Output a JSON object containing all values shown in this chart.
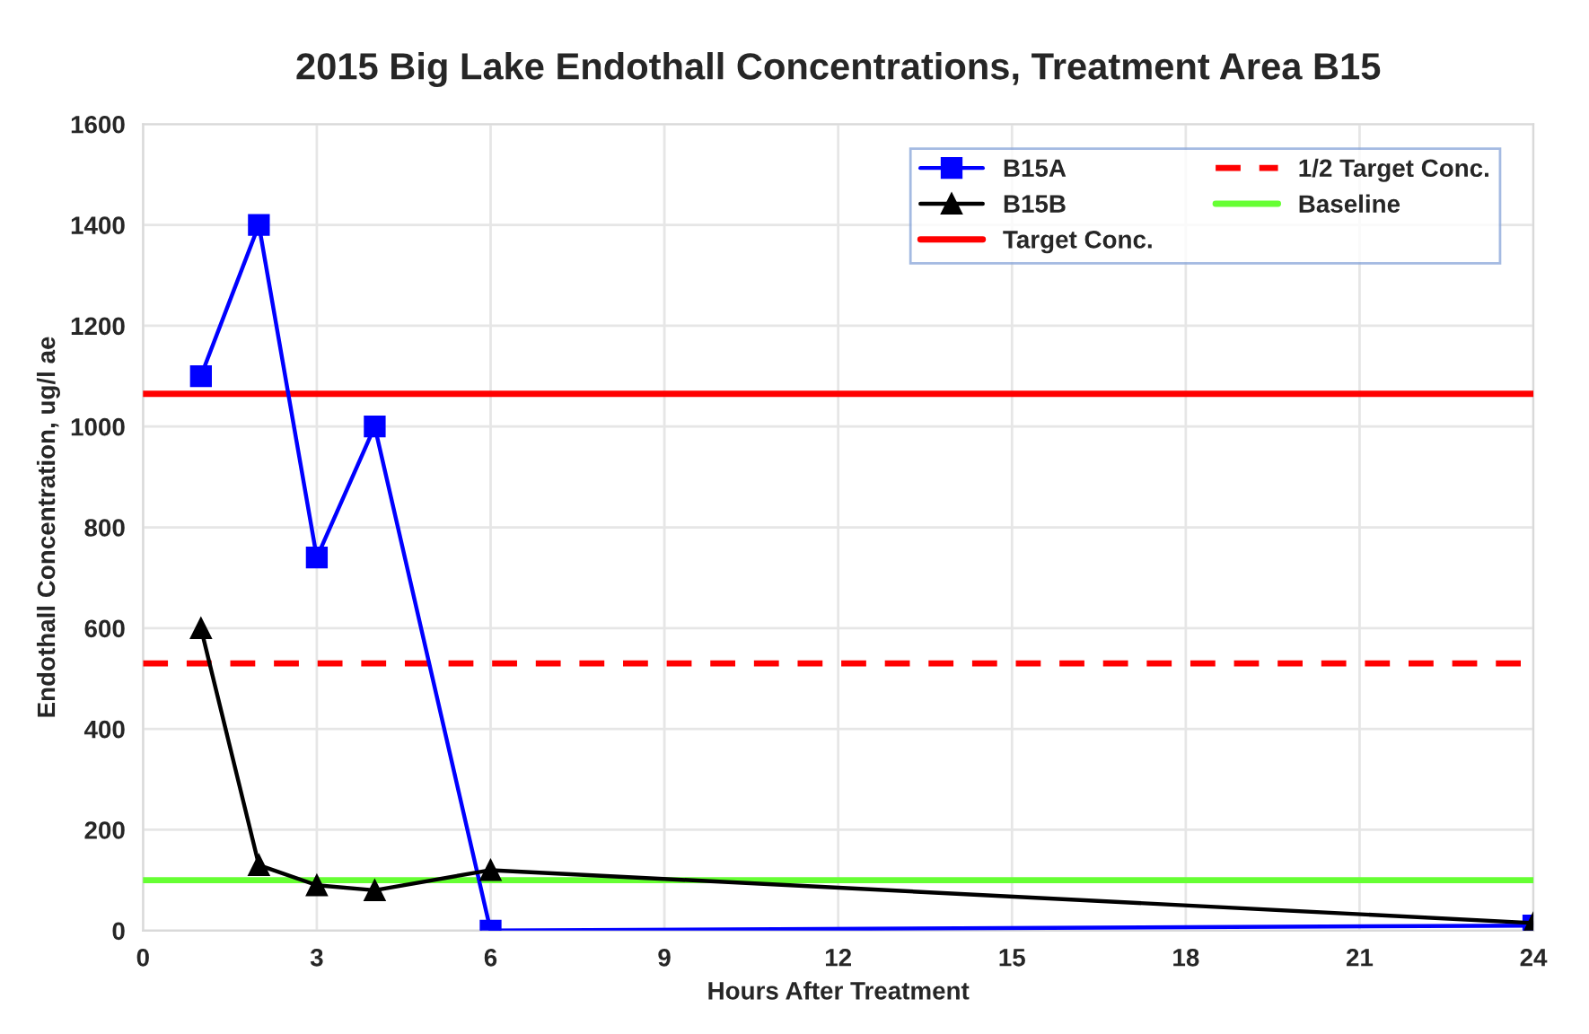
{
  "chart_data": {
    "type": "line",
    "title": "2015 Big Lake Endothall Concentrations, Treatment Area B15",
    "xlabel": "Hours After Treatment",
    "ylabel": "Endothall Concentration, ug/l ae",
    "x": [
      1,
      2,
      3,
      4,
      6,
      24
    ],
    "series": [
      {
        "name": "B15A",
        "color": "#0000ff",
        "marker": "square",
        "values": [
          1100,
          1400,
          740,
          1000,
          0,
          10
        ]
      },
      {
        "name": "B15B",
        "color": "#000000",
        "marker": "triangle",
        "values": [
          600,
          130,
          90,
          80,
          120,
          15
        ]
      }
    ],
    "ref_lines": [
      {
        "axis": "y",
        "value": 1065,
        "label": "Target Conc.",
        "color": "#ff0000",
        "line_style": "solid"
      },
      {
        "axis": "y",
        "value": 530,
        "label": "1/2 Target Conc.",
        "color": "#ff0000",
        "line_style": "dashed"
      },
      {
        "axis": "y",
        "value": 100,
        "label": "Baseline",
        "color": "#66ff33",
        "line_style": "solid"
      }
    ],
    "xlim": [
      0,
      24
    ],
    "xticks": [
      0,
      3,
      6,
      9,
      12,
      15,
      18,
      21,
      24
    ],
    "ylim": [
      0,
      1600
    ],
    "yticks": [
      0,
      200,
      400,
      600,
      800,
      1000,
      1200,
      1400,
      1600
    ],
    "grid": true,
    "legend": "top right",
    "line_style": "solid"
  }
}
